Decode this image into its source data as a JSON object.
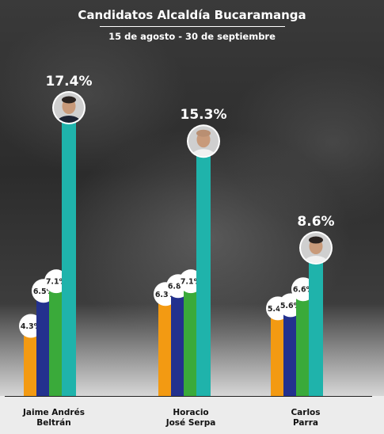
{
  "header": {
    "title": "Candidatos Alcaldía Bucaramanga",
    "subtitle": "15 de agosto - 30 de septiembre"
  },
  "chart_data": {
    "type": "bar",
    "title": "Candidatos Alcaldía Bucaramanga",
    "subtitle": "15 de agosto - 30 de septiembre",
    "categories": [
      {
        "line1": "Jaime Andrés",
        "line2": "Beltrán"
      },
      {
        "line1": "Horacio",
        "line2": "José Serpa"
      },
      {
        "line1": "Carlos",
        "line2": "Parra"
      }
    ],
    "series_colors": [
      "#f39a12",
      "#23318e",
      "#3aaa3a",
      "#1fb3ab"
    ],
    "values": [
      [
        4.3,
        6.5,
        7.1,
        17.4
      ],
      [
        6.3,
        6.8,
        7.1,
        15.3
      ],
      [
        5.4,
        5.6,
        6.6,
        8.6
      ]
    ],
    "labels": [
      [
        "4.3%",
        "6.5%",
        "7.1%",
        "17.4%"
      ],
      [
        "6.3%",
        "6.8%",
        "7.1%",
        "15.3%"
      ],
      [
        "5.4%",
        "5.6%",
        "6.6%",
        "8.6%"
      ]
    ],
    "avatars": [
      "candidate-1-photo",
      "candidate-2-photo",
      "candidate-3-photo"
    ]
  }
}
